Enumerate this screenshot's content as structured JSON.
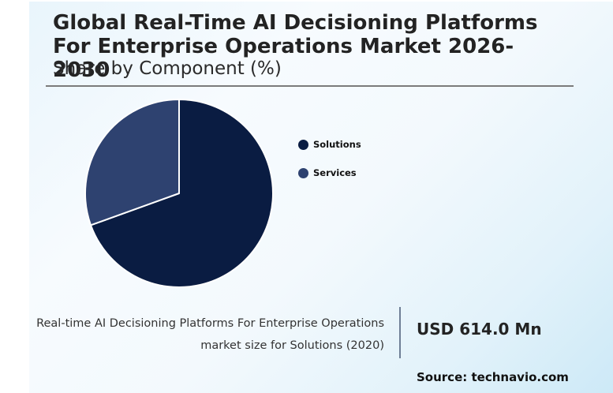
{
  "header": {
    "title": "Global Real-Time AI Decisioning Platforms For Enterprise Operations Market 2026-2030",
    "subtitle": "Share by Component (%)"
  },
  "legend": {
    "items": [
      {
        "label": "Solutions",
        "color": "#0a1c42"
      },
      {
        "label": "Services",
        "color": "#2e4270"
      }
    ]
  },
  "stat": {
    "description_line1": "Real-time AI Decisioning Platforms For Enterprise Operations",
    "description_line2": "market size for Solutions (2020)",
    "value": "USD 614.0 Mn"
  },
  "footer": {
    "source": "Source: technavio.com"
  },
  "colors": {
    "solutions": "#0a1c42",
    "services": "#2e4270",
    "rule": "#7b7b7b",
    "divider": "#6f7f96"
  },
  "chart_data": {
    "type": "pie",
    "title": "Global Real-Time AI Decisioning Platforms For Enterprise Operations Market 2026-2030",
    "subtitle": "Share by Component (%)",
    "categories": [
      "Solutions",
      "Services"
    ],
    "values": [
      69.5,
      30.5
    ],
    "colors": [
      "#0a1c42",
      "#2e4270"
    ],
    "start_angle": 90,
    "direction": "clockwise",
    "legend_position": "right",
    "data_labels": false
  }
}
